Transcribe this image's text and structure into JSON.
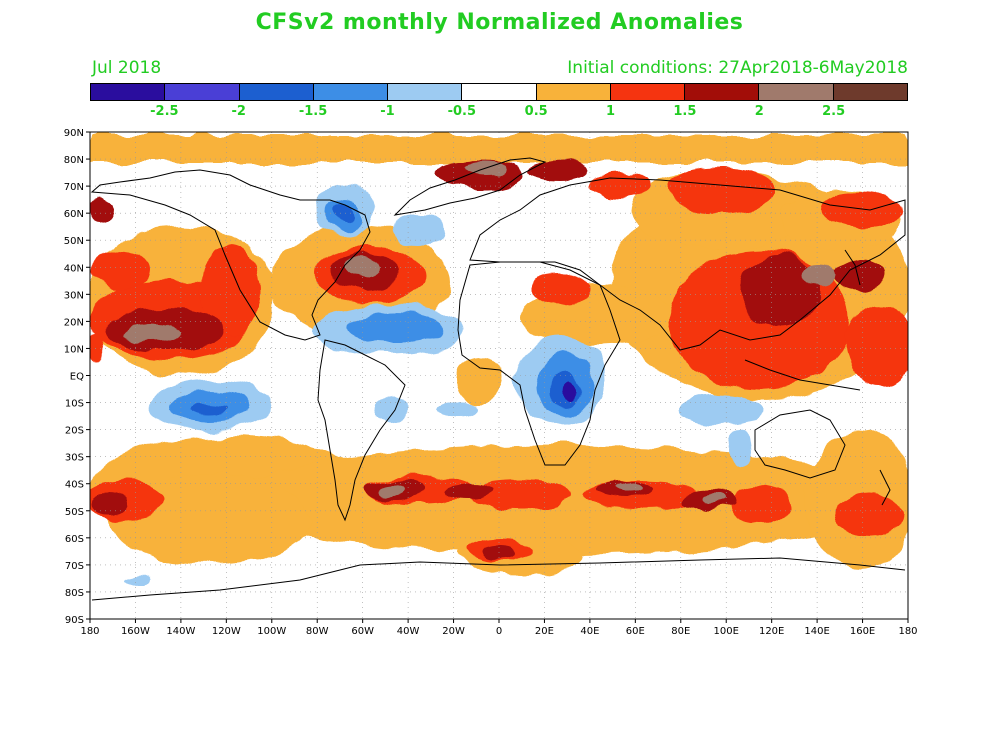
{
  "title": "CFSv2 monthly Normalized Anomalies",
  "valid_month": "Jul 2018",
  "initial_conditions": "Initial conditions: 27Apr2018-6May2018",
  "colorbar": {
    "colors": [
      "#2a0d9e",
      "#4a3fd6",
      "#1c5fd0",
      "#3d8ee6",
      "#9dcbf2",
      "#ffffff",
      "#f8b23a",
      "#f53410",
      "#a20d08",
      "#a07a6c",
      "#6e3a2c"
    ],
    "labels": [
      "-2.5",
      "-2",
      "-1.5",
      "-1",
      "-0.5",
      "0.5",
      "1",
      "1.5",
      "2",
      "2.5"
    ]
  },
  "lat_labels": [
    "90N",
    "80N",
    "70N",
    "60N",
    "50N",
    "40N",
    "30N",
    "20N",
    "10N",
    "EQ",
    "10S",
    "20S",
    "30S",
    "40S",
    "50S",
    "60S",
    "70S",
    "80S",
    "90S"
  ],
  "lon_labels": [
    "180",
    "160W",
    "140W",
    "120W",
    "100W",
    "80W",
    "60W",
    "40W",
    "20W",
    "0",
    "20E",
    "40E",
    "60E",
    "80E",
    "100E",
    "120E",
    "140E",
    "160E",
    "180"
  ]
}
